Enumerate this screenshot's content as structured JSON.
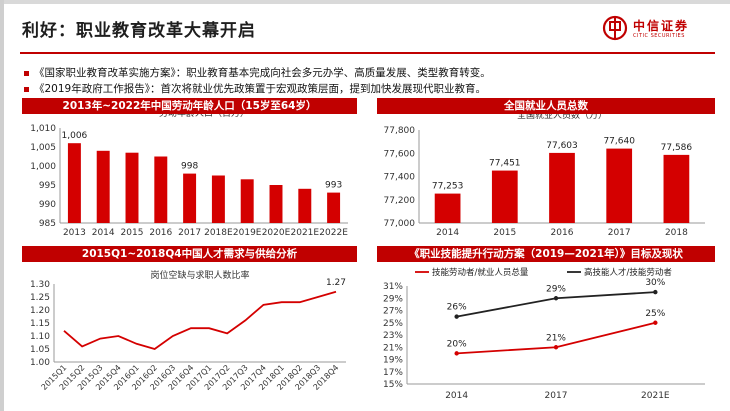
{
  "header": {
    "title": "利好：职业教育改革大幕开启",
    "logo_text": "中信证券",
    "logo_sub": "CITIC SECURITIES"
  },
  "bullets": [
    "《国家职业教育改革实施方案》：职业教育基本完成向社会多元办学、高质量发展、类型教育转变。",
    "《2019年政府工作报告》：首次将就业优先政策置于宏观政策层面，提到加快发展现代职业教育。"
  ],
  "colors": {
    "accent": "#c00000",
    "bar": "#d40000",
    "line2": "#222222"
  },
  "panels": [
    {
      "title": "2013年~2022年中国劳动年龄人口（15岁至64岁）"
    },
    {
      "title": "全国就业人员总数"
    },
    {
      "title": "2015Q1~2018Q4中国人才需求与供给分析"
    },
    {
      "title": "《职业技能提升行动方案（2019—2021年）》目标及现状"
    }
  ],
  "chart_data": [
    {
      "type": "bar",
      "title": "劳动年龄人口（百万）",
      "categories": [
        "2013",
        "2014",
        "2015",
        "2016",
        "2017",
        "2018E",
        "2019E",
        "2020E",
        "2021E",
        "2022E"
      ],
      "values": [
        1006,
        1004,
        1003.5,
        1002.5,
        998,
        997.5,
        996.5,
        995,
        994,
        993
      ],
      "data_labels": {
        "0": "1,006",
        "4": "998",
        "9": "993"
      },
      "ylim": [
        985,
        1010
      ],
      "yticks": [
        "985",
        "990",
        "995",
        "1,000",
        "1,005",
        "1,010"
      ],
      "ytick_values": [
        985,
        990,
        995,
        1000,
        1005,
        1010
      ]
    },
    {
      "type": "bar",
      "title": "全国就业人员数（万）",
      "categories": [
        "2014",
        "2015",
        "2016",
        "2017",
        "2018"
      ],
      "values": [
        77253,
        77451,
        77603,
        77640,
        77586
      ],
      "data_labels": [
        "77,253",
        "77,451",
        "77,603",
        "77,640",
        "77,586"
      ],
      "ylim": [
        77000,
        77800
      ],
      "yticks": [
        "77,000",
        "77,200",
        "77,400",
        "77,600",
        "77,800"
      ],
      "ytick_values": [
        77000,
        77200,
        77400,
        77600,
        77800
      ]
    },
    {
      "type": "line",
      "title": "岗位空缺与求职人数比率",
      "categories": [
        "2015Q1",
        "2015Q2",
        "2015Q3",
        "2015Q4",
        "2016Q1",
        "2016Q2",
        "2016Q3",
        "2016Q4",
        "2017Q1",
        "2017Q2",
        "2017Q3",
        "2017Q4",
        "2018Q1",
        "2018Q2",
        "2018Q3",
        "2018Q4"
      ],
      "values": [
        1.12,
        1.06,
        1.09,
        1.1,
        1.07,
        1.05,
        1.1,
        1.13,
        1.13,
        1.11,
        1.16,
        1.22,
        1.23,
        1.23,
        1.25,
        1.27
      ],
      "data_labels": {
        "15": "1.27"
      },
      "ylim": [
        1.0,
        1.3
      ],
      "yticks": [
        "1.00",
        "1.05",
        "1.10",
        "1.15",
        "1.20",
        "1.25",
        "1.30"
      ],
      "ytick_values": [
        1.0,
        1.05,
        1.1,
        1.15,
        1.2,
        1.25,
        1.3
      ]
    },
    {
      "type": "line",
      "categories": [
        "2014",
        "2017",
        "2021E"
      ],
      "series": [
        {
          "name": "技能劳动者/就业人员总量",
          "values": [
            20,
            21,
            25
          ],
          "labels": [
            "20%",
            "21%",
            "25%"
          ]
        },
        {
          "name": "高技能人才/技能劳动者",
          "values": [
            26,
            29,
            30
          ],
          "labels": [
            "26%",
            "29%",
            "30%"
          ]
        }
      ],
      "ylim": [
        15,
        31
      ],
      "yticks": [
        "15%",
        "17%",
        "19%",
        "21%",
        "23%",
        "25%",
        "27%",
        "29%",
        "31%"
      ],
      "ytick_values": [
        15,
        17,
        19,
        21,
        23,
        25,
        27,
        29,
        31
      ]
    }
  ]
}
